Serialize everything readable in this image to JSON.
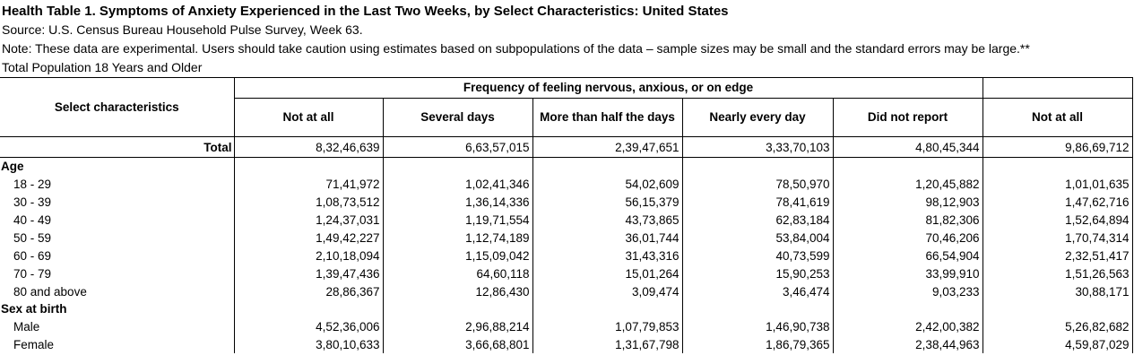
{
  "title": "Health Table 1. Symptoms of Anxiety Experienced in the Last Two Weeks, by Select Characteristics: United States",
  "source": "Source: U.S. Census Bureau Household Pulse Survey, Week 63.",
  "note": "Note: These data are experimental. Users should take caution using estimates based on subpopulations of the data – sample sizes may be small and the standard errors may be large.**",
  "population": "Total Population 18 Years and Older",
  "table": {
    "row_header": "Select characteristics",
    "group_header": "Frequency of feeling nervous, anxious, or on edge",
    "columns": [
      "Not at all",
      "Several days",
      "More than half the days",
      "Nearly every day",
      "Did not report",
      "Not at all"
    ],
    "total": {
      "label": "Total",
      "values": [
        "8,32,46,639",
        "6,63,57,015",
        "2,39,47,651",
        "3,33,70,103",
        "4,80,45,344",
        "9,86,69,712"
      ]
    },
    "groups": [
      {
        "label": "Age",
        "rows": [
          {
            "label": "18 - 29",
            "values": [
              "71,41,972",
              "1,02,41,346",
              "54,02,609",
              "78,50,970",
              "1,20,45,882",
              "1,01,01,635"
            ]
          },
          {
            "label": "30 - 39",
            "values": [
              "1,08,73,512",
              "1,36,14,336",
              "56,15,379",
              "78,41,619",
              "98,12,903",
              "1,47,62,716"
            ]
          },
          {
            "label": "40 - 49",
            "values": [
              "1,24,37,031",
              "1,19,71,554",
              "43,73,865",
              "62,83,184",
              "81,82,306",
              "1,52,64,894"
            ]
          },
          {
            "label": "50 - 59",
            "values": [
              "1,49,42,227",
              "1,12,74,189",
              "36,01,744",
              "53,84,004",
              "70,46,206",
              "1,70,74,314"
            ]
          },
          {
            "label": "60 - 69",
            "values": [
              "2,10,18,094",
              "1,15,09,042",
              "31,43,316",
              "40,73,599",
              "66,54,904",
              "2,32,51,417"
            ]
          },
          {
            "label": "70 - 79",
            "values": [
              "1,39,47,436",
              "64,60,118",
              "15,01,264",
              "15,90,253",
              "33,99,910",
              "1,51,26,563"
            ]
          },
          {
            "label": "80 and above",
            "values": [
              "28,86,367",
              "12,86,430",
              "3,09,474",
              "3,46,474",
              "9,03,233",
              "30,88,171"
            ]
          }
        ]
      },
      {
        "label": "Sex at birth",
        "rows": [
          {
            "label": "Male",
            "values": [
              "4,52,36,006",
              "2,96,88,214",
              "1,07,79,853",
              "1,46,90,738",
              "2,42,00,382",
              "5,26,82,682"
            ]
          },
          {
            "label": "Female",
            "values": [
              "3,80,10,633",
              "3,66,68,801",
              "1,31,67,798",
              "1,86,79,365",
              "2,38,44,963",
              "4,59,87,029"
            ]
          }
        ]
      }
    ]
  }
}
